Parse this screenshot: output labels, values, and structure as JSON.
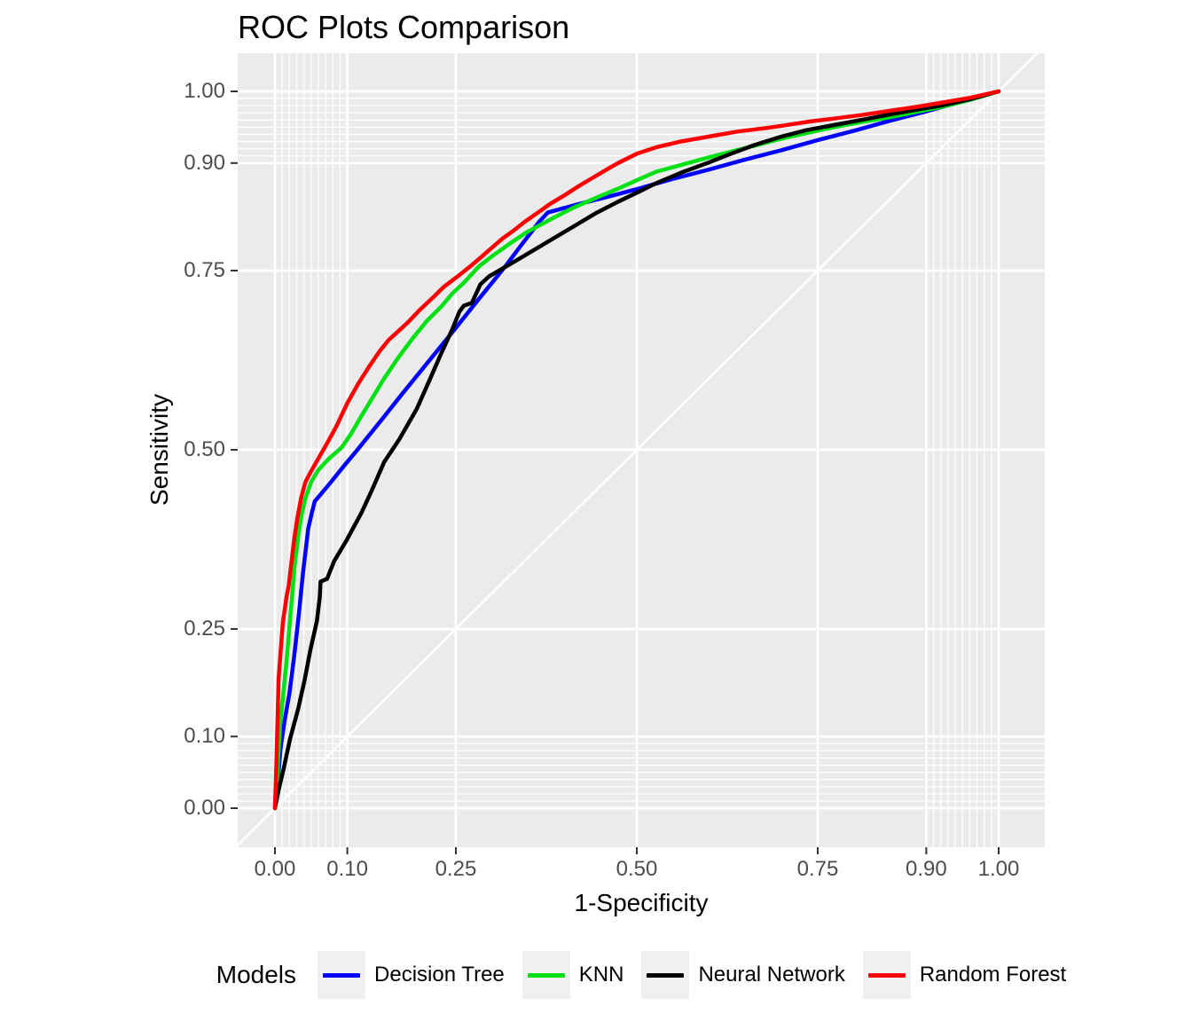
{
  "title": "ROC Plots Comparison",
  "axes": {
    "x": {
      "label": "1-Specificity",
      "ticks": [
        {
          "value": 0.0,
          "label": "0.00"
        },
        {
          "value": 0.1,
          "label": "0.10"
        },
        {
          "value": 0.25,
          "label": "0.25"
        },
        {
          "value": 0.5,
          "label": "0.50"
        },
        {
          "value": 0.75,
          "label": "0.75"
        },
        {
          "value": 0.9,
          "label": "0.90"
        },
        {
          "value": 1.0,
          "label": "1.00"
        }
      ]
    },
    "y": {
      "label": "Sensitivity",
      "ticks": [
        {
          "value": 0.0,
          "label": "0.00"
        },
        {
          "value": 0.1,
          "label": "0.10"
        },
        {
          "value": 0.25,
          "label": "0.25"
        },
        {
          "value": 0.5,
          "label": "0.50"
        },
        {
          "value": 0.75,
          "label": "0.75"
        },
        {
          "value": 0.9,
          "label": "0.90"
        },
        {
          "value": 1.0,
          "label": "1.00"
        }
      ]
    }
  },
  "panel": {
    "bg_color": "#EBEBEB",
    "grid_color": "#FFFFFF",
    "tick_mark_color": "#333333",
    "tick_label_color": "#4D4D4D",
    "major_breaks": [
      0,
      0.1,
      0.25,
      0.5,
      0.75,
      0.9,
      1.0
    ],
    "minor_breaks": [
      0.01,
      0.02,
      0.03,
      0.04,
      0.05,
      0.06,
      0.07,
      0.08,
      0.09,
      0.91,
      0.92,
      0.93,
      0.94,
      0.95,
      0.96,
      0.97,
      0.98,
      0.99
    ],
    "diagonal_color": "#FFFFFF"
  },
  "legend": {
    "title": "Models",
    "key_bg": "#F0F0F0",
    "items": [
      {
        "slug": "decision-tree",
        "label": "Decision Tree",
        "color": "#0000FF"
      },
      {
        "slug": "knn",
        "label": "KNN",
        "color": "#00E114"
      },
      {
        "slug": "neural-network",
        "label": "Neural Network",
        "color": "#000000"
      },
      {
        "slug": "random-forest",
        "label": "Random Forest",
        "color": "#FF0000"
      }
    ]
  },
  "chart_data": {
    "type": "line",
    "subtype": "roc-curves",
    "title": "ROC Plots Comparison",
    "xlabel": "1-Specificity",
    "ylabel": "Sensitivity",
    "xlim": [
      0,
      1
    ],
    "ylim": [
      0,
      1
    ],
    "x_breaks": [
      0,
      0.1,
      0.25,
      0.5,
      0.75,
      0.9,
      1.0
    ],
    "y_breaks": [
      0,
      0.1,
      0.25,
      0.5,
      0.75,
      0.9,
      1.0
    ],
    "grid": true,
    "diagonal_reference": true,
    "legend_position": "bottom",
    "legend_title": "Models",
    "series": [
      {
        "name": "Decision Tree",
        "slug": "decision-tree",
        "color": "#0000FF",
        "points": [
          [
            0,
            0
          ],
          [
            0.004,
            0.04
          ],
          [
            0.008,
            0.085
          ],
          [
            0.013,
            0.12
          ],
          [
            0.02,
            0.16
          ],
          [
            0.027,
            0.215
          ],
          [
            0.033,
            0.27
          ],
          [
            0.039,
            0.33
          ],
          [
            0.046,
            0.39
          ],
          [
            0.051,
            0.412
          ],
          [
            0.055,
            0.428
          ],
          [
            0.075,
            0.452
          ],
          [
            0.095,
            0.477
          ],
          [
            0.114,
            0.5
          ],
          [
            0.15,
            0.545
          ],
          [
            0.175,
            0.577
          ],
          [
            0.2,
            0.608
          ],
          [
            0.225,
            0.639
          ],
          [
            0.25,
            0.67
          ],
          [
            0.275,
            0.702
          ],
          [
            0.3,
            0.733
          ],
          [
            0.32,
            0.758
          ],
          [
            0.34,
            0.785
          ],
          [
            0.356,
            0.806
          ],
          [
            0.365,
            0.818
          ],
          [
            0.377,
            0.831
          ],
          [
            0.42,
            0.843
          ],
          [
            0.46,
            0.853
          ],
          [
            0.505,
            0.865
          ],
          [
            0.55,
            0.878
          ],
          [
            0.6,
            0.891
          ],
          [
            0.65,
            0.905
          ],
          [
            0.7,
            0.918
          ],
          [
            0.75,
            0.932
          ],
          [
            0.8,
            0.945
          ],
          [
            0.85,
            0.959
          ],
          [
            0.9,
            0.972
          ],
          [
            0.95,
            0.986
          ],
          [
            1,
            1
          ]
        ]
      },
      {
        "name": "KNN",
        "slug": "knn",
        "color": "#00E114",
        "points": [
          [
            0,
            0
          ],
          [
            0.003,
            0.04
          ],
          [
            0.005,
            0.08
          ],
          [
            0.007,
            0.115
          ],
          [
            0.01,
            0.145
          ],
          [
            0.013,
            0.175
          ],
          [
            0.016,
            0.205
          ],
          [
            0.019,
            0.24
          ],
          [
            0.021,
            0.265
          ],
          [
            0.024,
            0.3
          ],
          [
            0.028,
            0.345
          ],
          [
            0.033,
            0.385
          ],
          [
            0.037,
            0.41
          ],
          [
            0.042,
            0.432
          ],
          [
            0.05,
            0.455
          ],
          [
            0.06,
            0.472
          ],
          [
            0.075,
            0.488
          ],
          [
            0.092,
            0.503
          ],
          [
            0.105,
            0.522
          ],
          [
            0.12,
            0.548
          ],
          [
            0.135,
            0.573
          ],
          [
            0.15,
            0.598
          ],
          [
            0.17,
            0.628
          ],
          [
            0.19,
            0.655
          ],
          [
            0.21,
            0.68
          ],
          [
            0.23,
            0.7
          ],
          [
            0.245,
            0.718
          ],
          [
            0.26,
            0.732
          ],
          [
            0.282,
            0.756
          ],
          [
            0.3,
            0.77
          ],
          [
            0.325,
            0.788
          ],
          [
            0.347,
            0.803
          ],
          [
            0.38,
            0.821
          ],
          [
            0.413,
            0.838
          ],
          [
            0.445,
            0.852
          ],
          [
            0.478,
            0.866
          ],
          [
            0.5,
            0.876
          ],
          [
            0.527,
            0.888
          ],
          [
            0.56,
            0.897
          ],
          [
            0.6,
            0.908
          ],
          [
            0.63,
            0.916
          ],
          [
            0.662,
            0.924
          ],
          [
            0.7,
            0.934
          ],
          [
            0.74,
            0.943
          ],
          [
            0.772,
            0.95
          ],
          [
            0.81,
            0.957
          ],
          [
            0.85,
            0.964
          ],
          [
            0.89,
            0.972
          ],
          [
            0.92,
            0.978
          ],
          [
            0.96,
            0.988
          ],
          [
            1,
            1
          ]
        ]
      },
      {
        "name": "Neural Network",
        "slug": "neural-network",
        "color": "#000000",
        "points": [
          [
            0,
            0
          ],
          [
            0.005,
            0.025
          ],
          [
            0.012,
            0.055
          ],
          [
            0.021,
            0.097
          ],
          [
            0.032,
            0.138
          ],
          [
            0.041,
            0.179
          ],
          [
            0.049,
            0.221
          ],
          [
            0.058,
            0.261
          ],
          [
            0.062,
            0.295
          ],
          [
            0.063,
            0.316
          ],
          [
            0.072,
            0.32
          ],
          [
            0.082,
            0.345
          ],
          [
            0.098,
            0.372
          ],
          [
            0.12,
            0.413
          ],
          [
            0.135,
            0.446
          ],
          [
            0.151,
            0.483
          ],
          [
            0.172,
            0.515
          ],
          [
            0.196,
            0.557
          ],
          [
            0.214,
            0.598
          ],
          [
            0.23,
            0.635
          ],
          [
            0.245,
            0.668
          ],
          [
            0.255,
            0.693
          ],
          [
            0.261,
            0.701
          ],
          [
            0.272,
            0.705
          ],
          [
            0.284,
            0.731
          ],
          [
            0.296,
            0.742
          ],
          [
            0.33,
            0.762
          ],
          [
            0.38,
            0.792
          ],
          [
            0.445,
            0.831
          ],
          [
            0.472,
            0.845
          ],
          [
            0.505,
            0.861
          ],
          [
            0.527,
            0.872
          ],
          [
            0.565,
            0.888
          ],
          [
            0.6,
            0.901
          ],
          [
            0.63,
            0.913
          ],
          [
            0.662,
            0.925
          ],
          [
            0.7,
            0.937
          ],
          [
            0.735,
            0.946
          ],
          [
            0.772,
            0.953
          ],
          [
            0.82,
            0.962
          ],
          [
            0.85,
            0.968
          ],
          [
            0.89,
            0.975
          ],
          [
            0.92,
            0.98
          ],
          [
            0.96,
            0.989
          ],
          [
            1,
            1
          ]
        ]
      },
      {
        "name": "Random Forest",
        "slug": "random-forest",
        "color": "#FF0000",
        "points": [
          [
            0,
            0
          ],
          [
            0.001,
            0.03
          ],
          [
            0.002,
            0.06
          ],
          [
            0.003,
            0.1
          ],
          [
            0.004,
            0.14
          ],
          [
            0.005,
            0.18
          ],
          [
            0.008,
            0.22
          ],
          [
            0.011,
            0.26
          ],
          [
            0.016,
            0.295
          ],
          [
            0.019,
            0.31
          ],
          [
            0.023,
            0.345
          ],
          [
            0.027,
            0.378
          ],
          [
            0.031,
            0.405
          ],
          [
            0.036,
            0.432
          ],
          [
            0.042,
            0.455
          ],
          [
            0.05,
            0.47
          ],
          [
            0.06,
            0.488
          ],
          [
            0.071,
            0.507
          ],
          [
            0.085,
            0.533
          ],
          [
            0.1,
            0.565
          ],
          [
            0.115,
            0.592
          ],
          [
            0.13,
            0.616
          ],
          [
            0.145,
            0.638
          ],
          [
            0.157,
            0.653
          ],
          [
            0.17,
            0.665
          ],
          [
            0.184,
            0.678
          ],
          [
            0.2,
            0.695
          ],
          [
            0.22,
            0.714
          ],
          [
            0.233,
            0.727
          ],
          [
            0.25,
            0.74
          ],
          [
            0.27,
            0.756
          ],
          [
            0.284,
            0.768
          ],
          [
            0.3,
            0.782
          ],
          [
            0.315,
            0.795
          ],
          [
            0.33,
            0.806
          ],
          [
            0.345,
            0.818
          ],
          [
            0.365,
            0.832
          ],
          [
            0.38,
            0.843
          ],
          [
            0.4,
            0.855
          ],
          [
            0.42,
            0.868
          ],
          [
            0.44,
            0.88
          ],
          [
            0.46,
            0.892
          ],
          [
            0.474,
            0.9
          ],
          [
            0.5,
            0.913
          ],
          [
            0.527,
            0.922
          ],
          [
            0.56,
            0.93
          ],
          [
            0.6,
            0.937
          ],
          [
            0.64,
            0.944
          ],
          [
            0.68,
            0.949
          ],
          [
            0.7,
            0.952
          ],
          [
            0.74,
            0.958
          ],
          [
            0.772,
            0.962
          ],
          [
            0.81,
            0.967
          ],
          [
            0.85,
            0.973
          ],
          [
            0.89,
            0.979
          ],
          [
            0.92,
            0.984
          ],
          [
            0.96,
            0.991
          ],
          [
            1,
            1
          ]
        ]
      }
    ]
  }
}
